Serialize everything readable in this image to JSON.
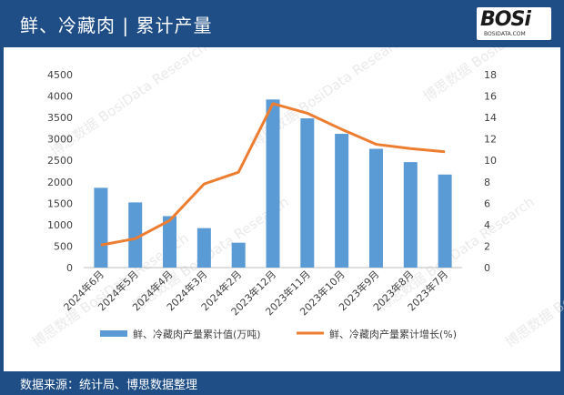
{
  "header": {
    "title": "鲜、冷藏肉 | 累计产量",
    "logo_text": "BOSi",
    "logo_sub": "BOSIDATA.COM"
  },
  "footer": {
    "source": "数据来源：统计局、博思数据整理"
  },
  "watermark": {
    "text": "博思数据 BosiData Research"
  },
  "colors": {
    "bar": "#5b9bd5",
    "line": "#ed7d31",
    "header": "#1f4e86"
  },
  "chart_data": {
    "type": "bar",
    "categories": [
      "2024年6月",
      "2024年5月",
      "2024年4月",
      "2024年3月",
      "2024年2月",
      "2023年12月",
      "2023年11月",
      "2023年10月",
      "2023年9月",
      "2023年8月",
      "2023年7月"
    ],
    "series": [
      {
        "name": "鲜、冷藏肉产量累计值(万吨)",
        "type": "bar",
        "axis": "left",
        "values": [
          1860,
          1520,
          1200,
          920,
          580,
          3920,
          3480,
          3120,
          2770,
          2460,
          2170
        ]
      },
      {
        "name": "鲜、冷藏肉产量累计增长(%)",
        "type": "line",
        "axis": "right",
        "values": [
          2.1,
          2.7,
          4.4,
          7.8,
          8.9,
          15.3,
          14.4,
          12.9,
          11.5,
          11.1,
          10.8
        ]
      }
    ],
    "ylim_left": [
      0,
      4500
    ],
    "ylim_right": [
      0,
      18
    ],
    "yticks_left": [
      "0",
      "500",
      "1000",
      "1500",
      "2000",
      "2500",
      "3000",
      "3500",
      "4000",
      "4500"
    ],
    "yticks_right": [
      "0",
      "2",
      "4",
      "6",
      "8",
      "10",
      "12",
      "14",
      "16",
      "18"
    ],
    "legend": "bottom",
    "grid": false
  }
}
